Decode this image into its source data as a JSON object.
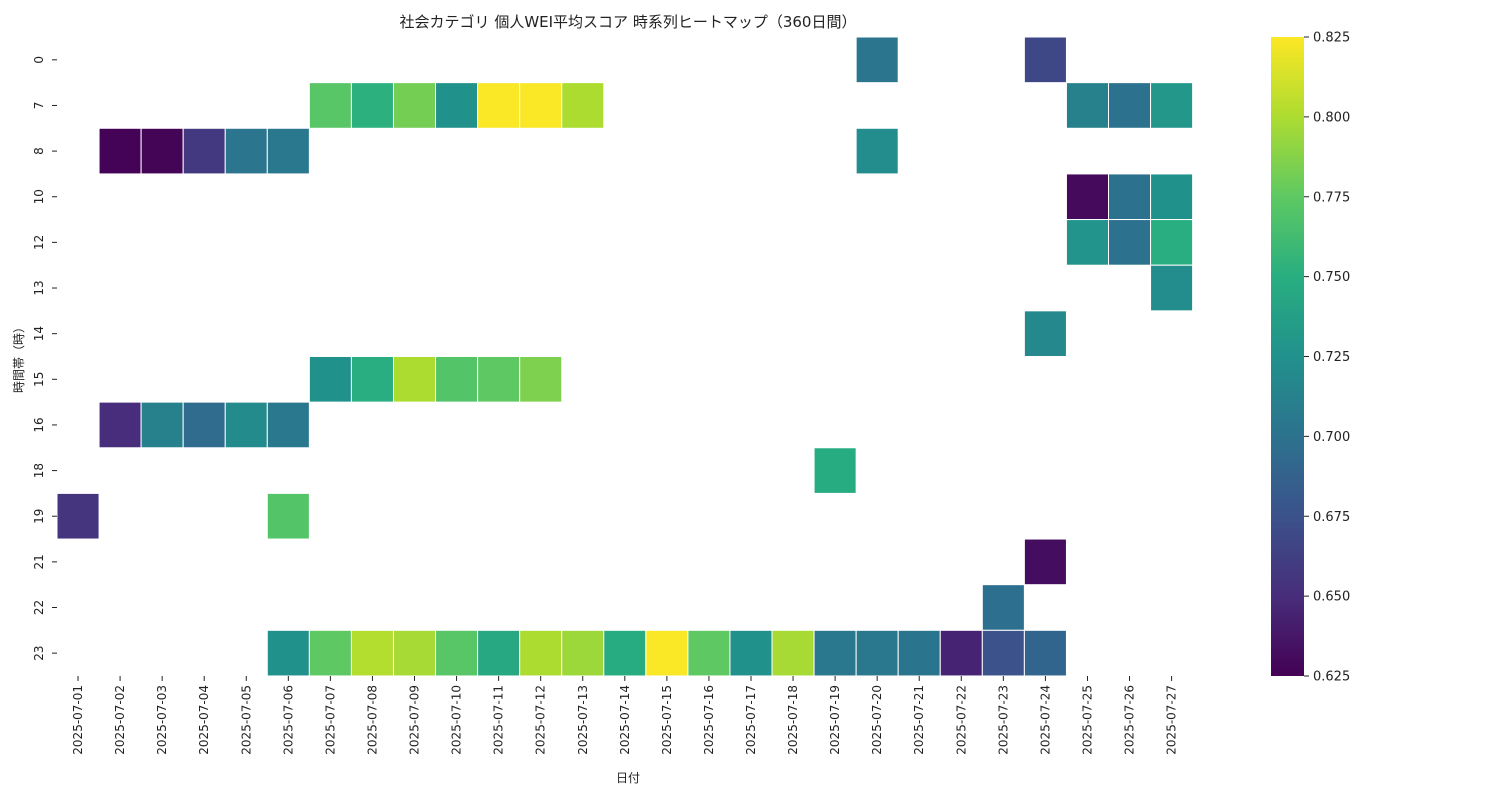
{
  "chart_data": {
    "type": "heatmap",
    "title": "社会カテゴリ 個人WEI平均スコア 時系列ヒートマップ（360日間）",
    "xlabel": "日付",
    "ylabel": "時間帯（時）",
    "x_categories": [
      "2025-07-01",
      "2025-07-02",
      "2025-07-03",
      "2025-07-04",
      "2025-07-05",
      "2025-07-06",
      "2025-07-07",
      "2025-07-08",
      "2025-07-09",
      "2025-07-10",
      "2025-07-11",
      "2025-07-12",
      "2025-07-13",
      "2025-07-14",
      "2025-07-15",
      "2025-07-16",
      "2025-07-17",
      "2025-07-18",
      "2025-07-19",
      "2025-07-20",
      "2025-07-21",
      "2025-07-22",
      "2025-07-23",
      "2025-07-24",
      "2025-07-25",
      "2025-07-26",
      "2025-07-27"
    ],
    "y_categories": [
      "0",
      "7",
      "8",
      "10",
      "12",
      "13",
      "14",
      "15",
      "16",
      "18",
      "19",
      "21",
      "22",
      "23"
    ],
    "colorbar": {
      "min": 0.625,
      "max": 0.825,
      "colormap": "viridis",
      "ticks": [
        0.625,
        0.65,
        0.675,
        0.7,
        0.725,
        0.75,
        0.775,
        0.8,
        0.825
      ],
      "tick_labels": [
        "0.625",
        "0.650",
        "0.675",
        "0.700",
        "0.725",
        "0.750",
        "0.775",
        "0.800",
        "0.825"
      ]
    },
    "grid": false,
    "cell_border_color": "#ffffff",
    "cells": [
      {
        "x": "2025-07-20",
        "y": "0",
        "value": 0.703
      },
      {
        "x": "2025-07-24",
        "y": "0",
        "value": 0.668
      },
      {
        "x": "2025-07-07",
        "y": "7",
        "value": 0.772
      },
      {
        "x": "2025-07-08",
        "y": "7",
        "value": 0.752
      },
      {
        "x": "2025-07-09",
        "y": "7",
        "value": 0.782
      },
      {
        "x": "2025-07-10",
        "y": "7",
        "value": 0.725
      },
      {
        "x": "2025-07-11",
        "y": "7",
        "value": 0.824
      },
      {
        "x": "2025-07-12",
        "y": "7",
        "value": 0.824
      },
      {
        "x": "2025-07-13",
        "y": "7",
        "value": 0.8
      },
      {
        "x": "2025-07-25",
        "y": "7",
        "value": 0.712
      },
      {
        "x": "2025-07-26",
        "y": "7",
        "value": 0.7
      },
      {
        "x": "2025-07-27",
        "y": "7",
        "value": 0.73
      },
      {
        "x": "2025-07-02",
        "y": "8",
        "value": 0.626
      },
      {
        "x": "2025-07-03",
        "y": "8",
        "value": 0.627
      },
      {
        "x": "2025-07-04",
        "y": "8",
        "value": 0.658
      },
      {
        "x": "2025-07-05",
        "y": "8",
        "value": 0.703
      },
      {
        "x": "2025-07-06",
        "y": "8",
        "value": 0.705
      },
      {
        "x": "2025-07-20",
        "y": "8",
        "value": 0.722
      },
      {
        "x": "2025-07-25",
        "y": "10",
        "value": 0.63
      },
      {
        "x": "2025-07-26",
        "y": "10",
        "value": 0.7
      },
      {
        "x": "2025-07-27",
        "y": "10",
        "value": 0.725
      },
      {
        "x": "2025-07-25",
        "y": "12",
        "value": 0.728
      },
      {
        "x": "2025-07-26",
        "y": "12",
        "value": 0.7
      },
      {
        "x": "2025-07-27",
        "y": "12",
        "value": 0.75
      },
      {
        "x": "2025-07-27",
        "y": "13",
        "value": 0.722
      },
      {
        "x": "2025-07-24",
        "y": "14",
        "value": 0.718
      },
      {
        "x": "2025-07-07",
        "y": "15",
        "value": 0.725
      },
      {
        "x": "2025-07-08",
        "y": "15",
        "value": 0.75
      },
      {
        "x": "2025-07-09",
        "y": "15",
        "value": 0.8
      },
      {
        "x": "2025-07-10",
        "y": "15",
        "value": 0.77
      },
      {
        "x": "2025-07-11",
        "y": "15",
        "value": 0.775
      },
      {
        "x": "2025-07-12",
        "y": "15",
        "value": 0.785
      },
      {
        "x": "2025-07-02",
        "y": "16",
        "value": 0.65
      },
      {
        "x": "2025-07-03",
        "y": "16",
        "value": 0.712
      },
      {
        "x": "2025-07-04",
        "y": "16",
        "value": 0.695
      },
      {
        "x": "2025-07-05",
        "y": "16",
        "value": 0.72
      },
      {
        "x": "2025-07-06",
        "y": "16",
        "value": 0.705
      },
      {
        "x": "2025-07-19",
        "y": "18",
        "value": 0.748
      },
      {
        "x": "2025-07-01",
        "y": "19",
        "value": 0.655
      },
      {
        "x": "2025-07-06",
        "y": "19",
        "value": 0.77
      },
      {
        "x": "2025-07-24",
        "y": "21",
        "value": 0.632
      },
      {
        "x": "2025-07-23",
        "y": "22",
        "value": 0.698
      },
      {
        "x": "2025-07-06",
        "y": "23",
        "value": 0.725
      },
      {
        "x": "2025-07-07",
        "y": "23",
        "value": 0.775
      },
      {
        "x": "2025-07-08",
        "y": "23",
        "value": 0.802
      },
      {
        "x": "2025-07-09",
        "y": "23",
        "value": 0.798
      },
      {
        "x": "2025-07-10",
        "y": "23",
        "value": 0.772
      },
      {
        "x": "2025-07-11",
        "y": "23",
        "value": 0.745
      },
      {
        "x": "2025-07-12",
        "y": "23",
        "value": 0.8
      },
      {
        "x": "2025-07-13",
        "y": "23",
        "value": 0.795
      },
      {
        "x": "2025-07-14",
        "y": "23",
        "value": 0.748
      },
      {
        "x": "2025-07-15",
        "y": "23",
        "value": 0.824
      },
      {
        "x": "2025-07-16",
        "y": "23",
        "value": 0.775
      },
      {
        "x": "2025-07-17",
        "y": "23",
        "value": 0.725
      },
      {
        "x": "2025-07-18",
        "y": "23",
        "value": 0.798
      },
      {
        "x": "2025-07-19",
        "y": "23",
        "value": 0.705
      },
      {
        "x": "2025-07-20",
        "y": "23",
        "value": 0.705
      },
      {
        "x": "2025-07-21",
        "y": "23",
        "value": 0.702
      },
      {
        "x": "2025-07-22",
        "y": "23",
        "value": 0.645
      },
      {
        "x": "2025-07-23",
        "y": "23",
        "value": 0.675
      },
      {
        "x": "2025-07-24",
        "y": "23",
        "value": 0.69
      }
    ]
  }
}
